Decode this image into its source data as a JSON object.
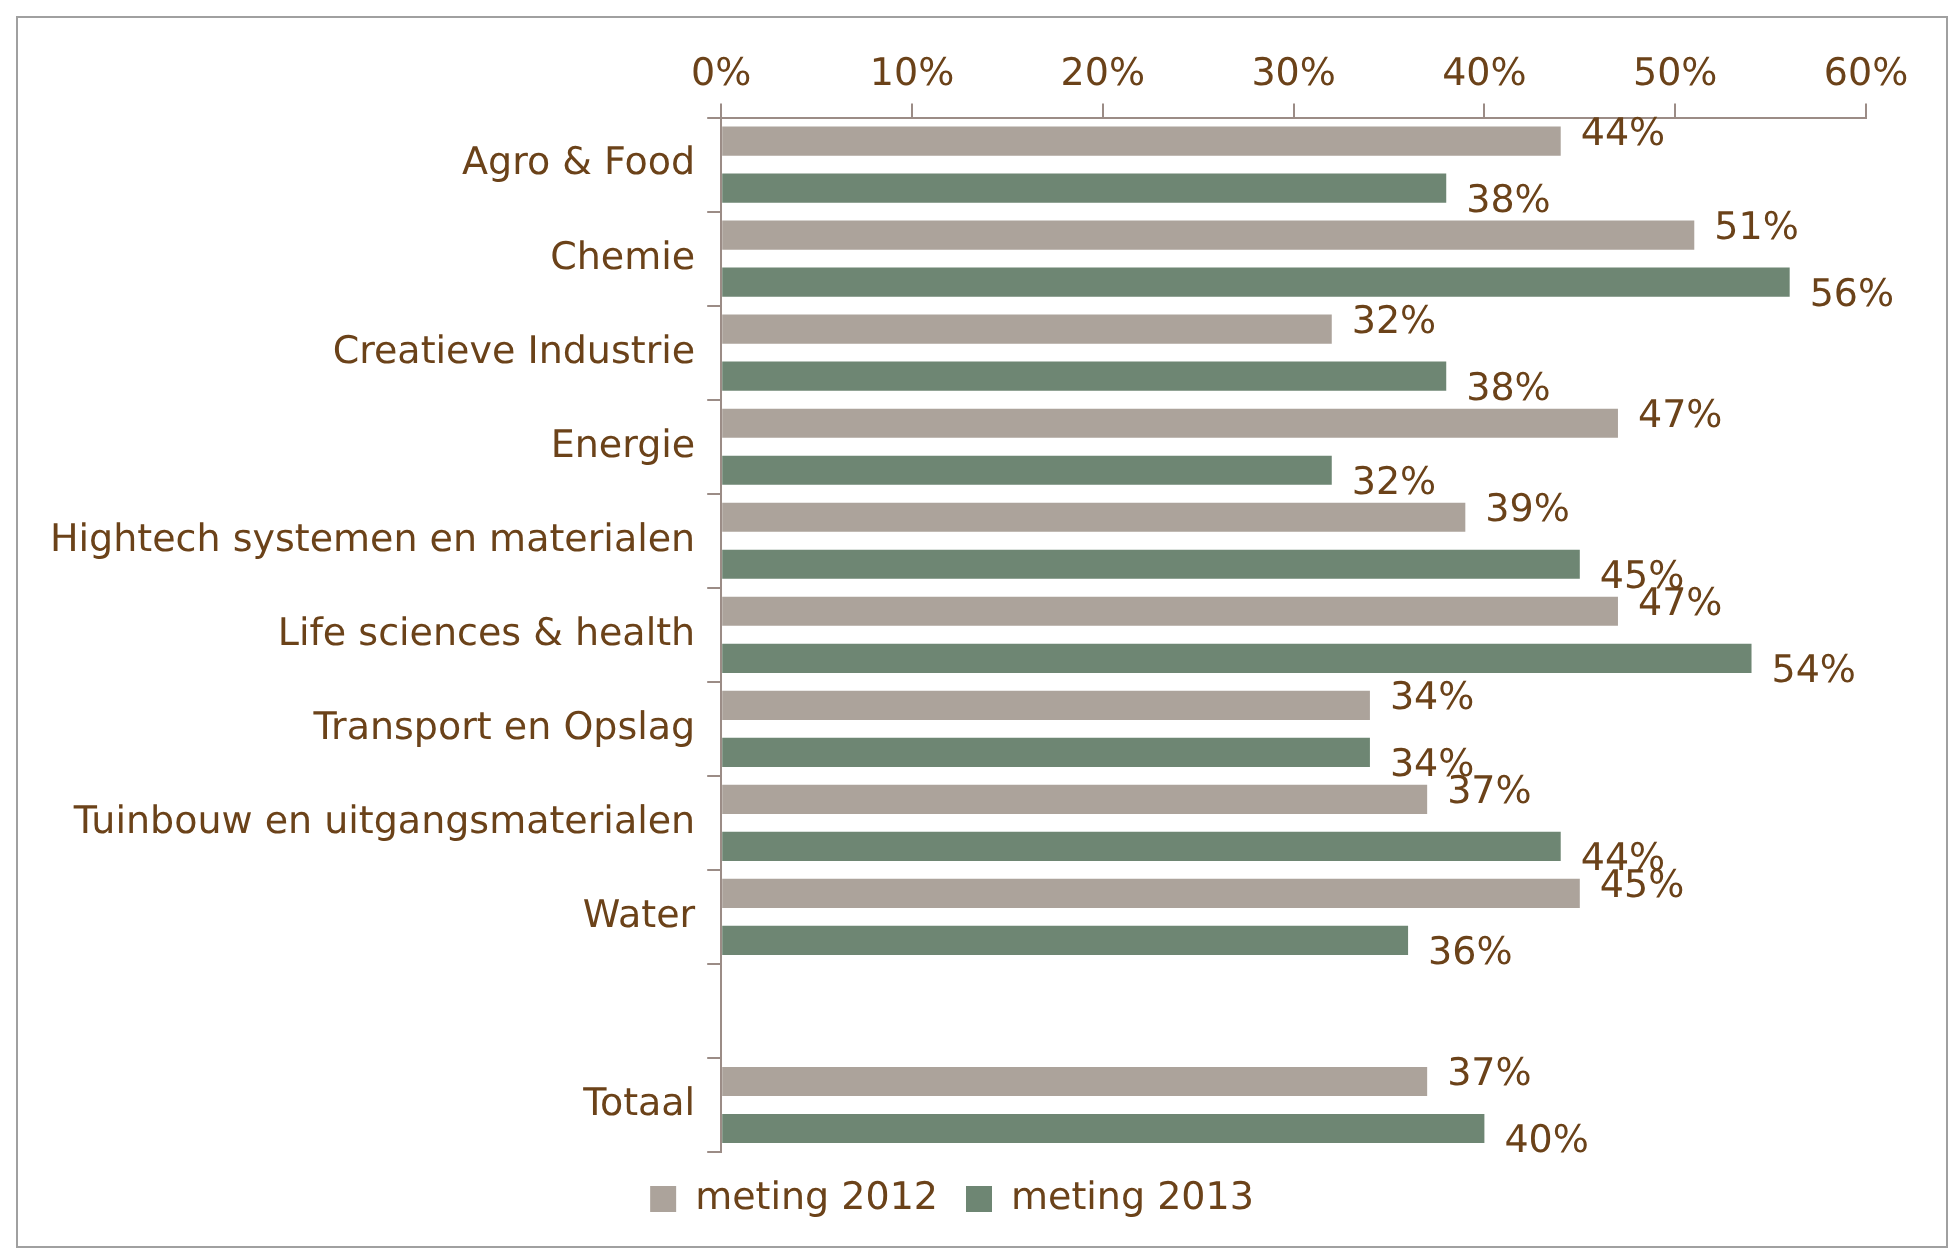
{
  "chart_data": {
    "type": "bar",
    "orientation": "horizontal",
    "categories": [
      "Agro & Food",
      "Chemie",
      "Creatieve Industrie",
      "Energie",
      "Hightech systemen en materialen",
      "Life sciences & health",
      "Transport en Opslag",
      "Tuinbouw en uitgangsmaterialen",
      "Water",
      null,
      "Totaal"
    ],
    "series": [
      {
        "name": "meting 2012",
        "color": "#aca39b",
        "values": [
          44,
          51,
          32,
          47,
          39,
          47,
          34,
          37,
          45,
          null,
          37
        ],
        "value_labels": [
          "44%",
          "51%",
          "32%",
          "47%",
          "39%",
          "47%",
          "34%",
          "37%",
          "45%",
          null,
          "37%"
        ]
      },
      {
        "name": "meting 2013",
        "color": "#6e8673",
        "values": [
          38,
          56,
          38,
          32,
          45,
          54,
          34,
          44,
          36,
          null,
          40
        ],
        "value_labels": [
          "38%",
          "56%",
          "38%",
          "32%",
          "45%",
          "54%",
          "34%",
          "44%",
          "36%",
          null,
          "40%"
        ]
      }
    ],
    "xlim": [
      0,
      60
    ],
    "xticks": [
      {
        "value": 0,
        "label": "0%"
      },
      {
        "value": 10,
        "label": "10%"
      },
      {
        "value": 20,
        "label": "20%"
      },
      {
        "value": 30,
        "label": "30%"
      },
      {
        "value": 40,
        "label": "40%"
      },
      {
        "value": 50,
        "label": "50%"
      },
      {
        "value": 60,
        "label": "60%"
      }
    ],
    "grid": false,
    "legend": "bottom"
  }
}
